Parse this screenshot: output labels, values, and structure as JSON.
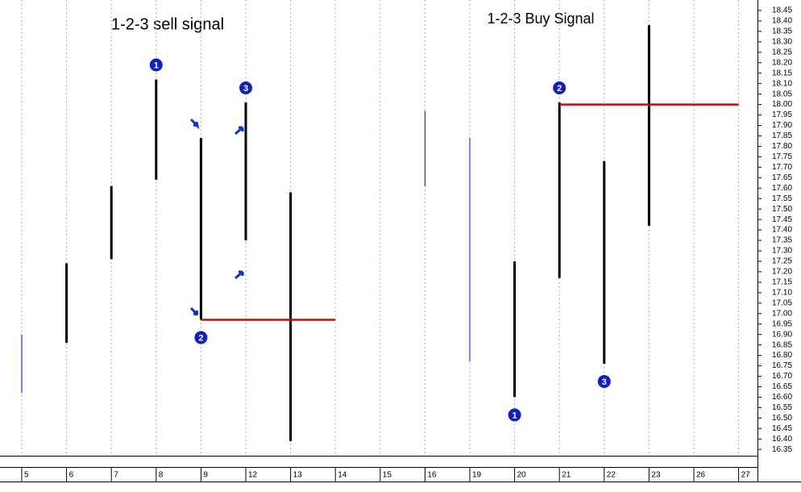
{
  "chart_data": {
    "type": "range_bar",
    "annotations": [
      "1-2-3 sell signal",
      "1-2-3 Buy Signal"
    ],
    "categories": [
      "5",
      "6",
      "7",
      "8",
      "9",
      "12",
      "13",
      "14",
      "15",
      "16",
      "19",
      "20",
      "21",
      "22",
      "23",
      "26",
      "27"
    ],
    "high": [
      16.9,
      17.24,
      17.61,
      18.12,
      17.84,
      18.01,
      17.58,
      null,
      null,
      17.97,
      17.84,
      17.25,
      18.01,
      17.73,
      18.38,
      null,
      null
    ],
    "low": [
      16.62,
      16.86,
      17.26,
      17.64,
      16.97,
      17.35,
      16.39,
      null,
      null,
      17.61,
      16.77,
      16.6,
      17.17,
      16.76,
      17.42,
      null,
      null
    ],
    "colors": [
      "#0000ff",
      "#000000",
      "#000000",
      "#000000",
      "#000000",
      "#000000",
      "#000000",
      null,
      null,
      "#0000ff",
      "#0000ff",
      "#000000",
      "#000000",
      "#000000",
      "#000000",
      null,
      null
    ],
    "levels": [
      {
        "y": 16.97,
        "from": "9",
        "to": "14",
        "color": "#e00000"
      },
      {
        "y": 18.0,
        "from": "21",
        "to": "27",
        "color": "#e00000"
      }
    ],
    "markers": [
      {
        "label": "1",
        "category": "8",
        "at": "high"
      },
      {
        "label": "2",
        "category": "9",
        "at": "low"
      },
      {
        "label": "3",
        "category": "12",
        "at": "high"
      },
      {
        "label": "1",
        "category": "20",
        "at": "low"
      },
      {
        "label": "2",
        "category": "21",
        "at": "high"
      },
      {
        "label": "3",
        "category": "22",
        "at": "low"
      }
    ],
    "ylim": [
      16.32,
      18.5
    ],
    "yticks": [
      16.35,
      {
        "value": 16.4,
        "label": "16.40"
      },
      16.45,
      {
        "value": 16.5,
        "label": "16.50"
      },
      16.55,
      {
        "value": 16.6,
        "label": "16.60"
      },
      16.65,
      {
        "value": 16.7,
        "label": "16.70"
      },
      16.75,
      {
        "value": 16.8,
        "label": "16.80"
      },
      16.85,
      {
        "value": 16.9,
        "label": "16.90"
      },
      16.95,
      {
        "value": 17,
        "label": "17.00"
      },
      17.05,
      {
        "value": 17.1,
        "label": "17.10"
      },
      17.15,
      {
        "value": 17.2,
        "label": "17.20"
      },
      17.25,
      {
        "value": 17.3,
        "label": "17.30"
      },
      17.35,
      {
        "value": 17.4,
        "label": "17.40"
      },
      17.45,
      {
        "value": 17.5,
        "label": "17.50"
      },
      17.55,
      {
        "value": 17.6,
        "label": "17.60"
      },
      17.65,
      {
        "value": 17.7,
        "label": "17.70"
      },
      17.75,
      {
        "value": 17.8,
        "label": "17.80"
      },
      17.85,
      {
        "value": 17.9,
        "label": "17.90"
      },
      17.95,
      {
        "value": 18,
        "label": "18.00"
      },
      18.05,
      {
        "value": 18.1,
        "label": "18.10"
      },
      18.15,
      {
        "value": 18.2,
        "label": "18.20"
      },
      18.25,
      {
        "value": 18.3,
        "label": "18.30"
      },
      18.35,
      {
        "value": 18.4,
        "label": "18.40"
      },
      18.45
    ],
    "grid": true
  }
}
